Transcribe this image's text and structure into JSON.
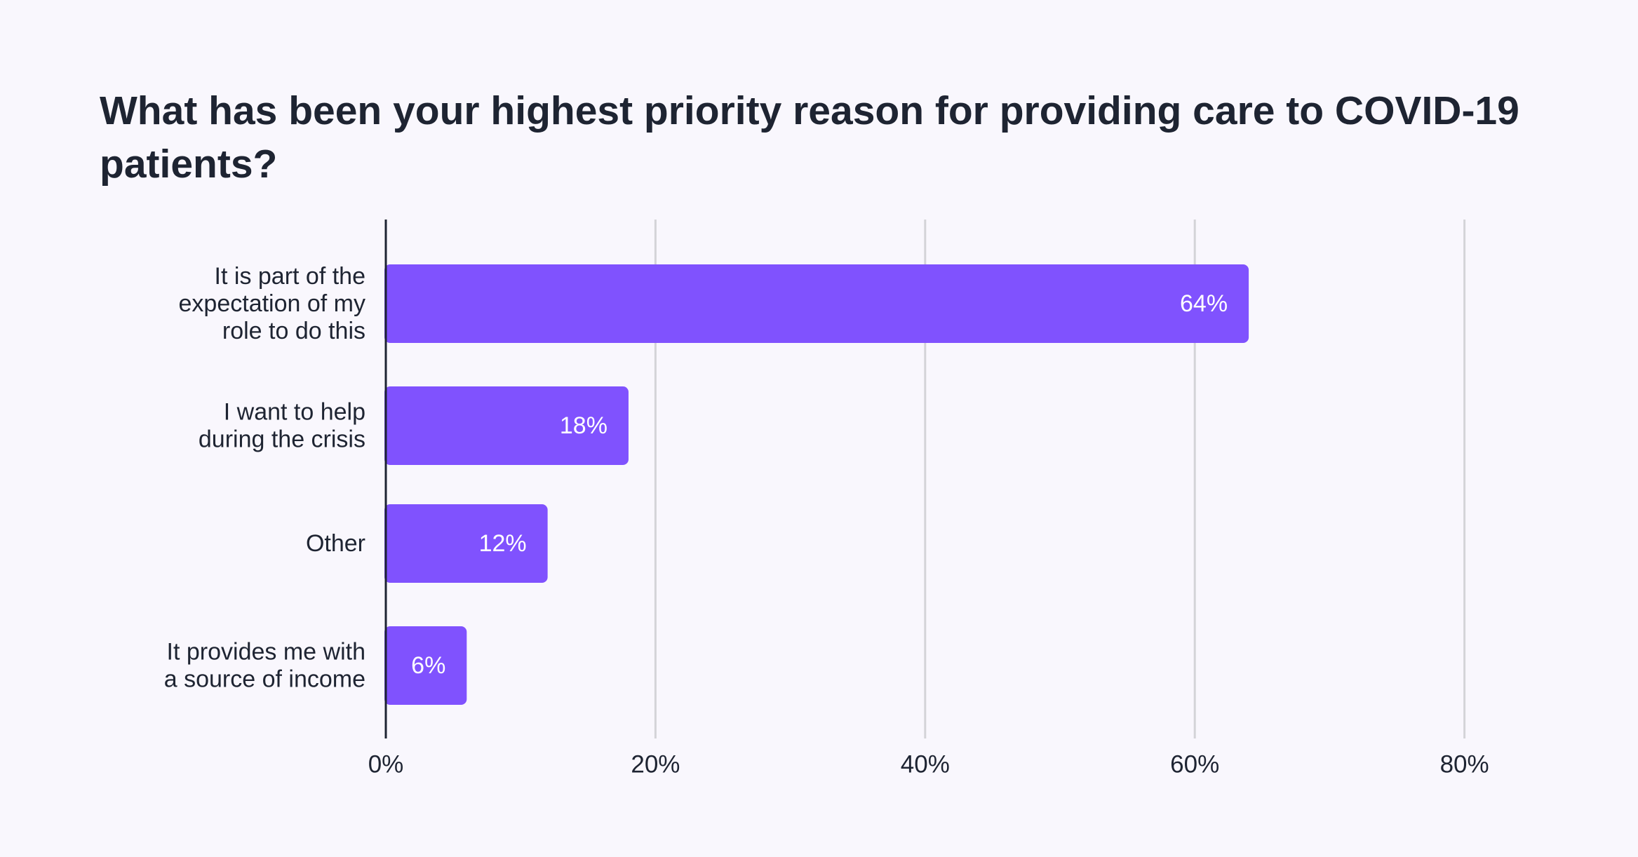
{
  "chart_data": {
    "type": "bar",
    "orientation": "horizontal",
    "title": "What has been your highest priority reason for providing care to COVID-19 patients?",
    "categories": [
      [
        "It is part of the",
        "expectation of my",
        "role to do this"
      ],
      [
        "I want to help",
        "during the crisis"
      ],
      [
        "Other"
      ],
      [
        "It provides me with",
        "a source of income"
      ]
    ],
    "values": [
      64,
      18,
      12,
      6
    ],
    "value_labels": [
      "64%",
      "18%",
      "12%",
      "6%"
    ],
    "xlim": [
      0,
      80
    ],
    "xticks": [
      0,
      20,
      40,
      60,
      80
    ],
    "xtick_labels": [
      "0%",
      "20%",
      "40%",
      "60%",
      "80%"
    ],
    "grid": true,
    "legend": "none",
    "colors": {
      "bar": "#8052fe",
      "grid": "#d4d4d8",
      "axis": "#1e2432",
      "text": "#1e2432",
      "bar_text": "#ffffff",
      "background": "#f9f7fd"
    }
  }
}
